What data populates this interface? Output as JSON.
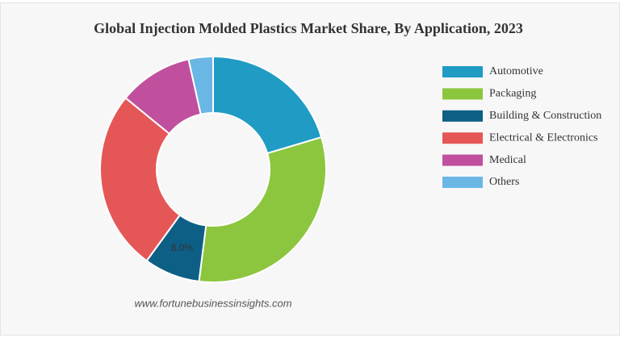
{
  "chart_data": {
    "type": "donut",
    "title": "Global Injection Molded Plastics Market Share, By Application, 2023",
    "categories": [
      "Automotive",
      "Packaging",
      "Building & Construction",
      "Electrical & Electronics",
      "Medical",
      "Others"
    ],
    "values": [
      20.4,
      31.6,
      8.0,
      25.9,
      10.6,
      3.5
    ],
    "value_labels": [
      null,
      null,
      "8.0%",
      null,
      null,
      null
    ],
    "colors": [
      "#1f9bc4",
      "#8cc63f",
      "#0d5f86",
      "#e55757",
      "#c0509e",
      "#6ab7e6"
    ],
    "legend": "right",
    "source": "www.fortunebusinessinsights.com"
  }
}
